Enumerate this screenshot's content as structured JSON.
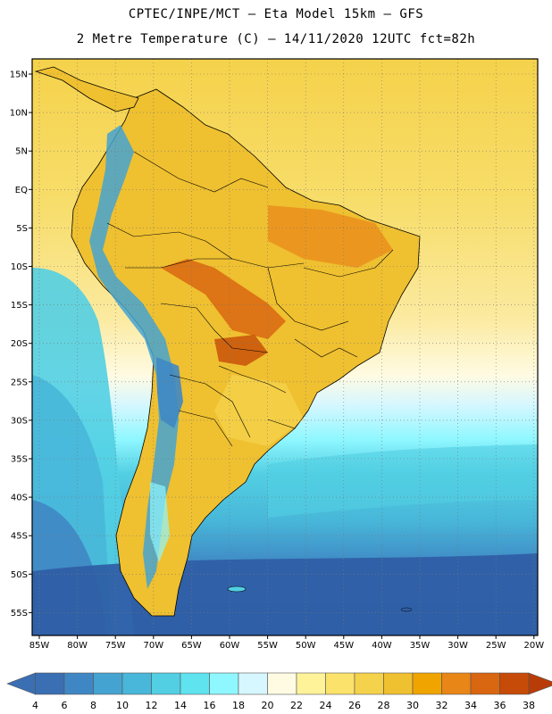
{
  "header": {
    "line1": "CPTEC/INPE/MCT –  Eta Model 15km – GFS",
    "line2": "2 Metre Temperature (C) – 14/11/2020 12UTC fct=82h"
  },
  "axes": {
    "lat_labels": [
      "15N",
      "10N",
      "5N",
      "EQ",
      "5S",
      "10S",
      "15S",
      "20S",
      "25S",
      "30S",
      "35S",
      "40S",
      "45S",
      "50S",
      "55S"
    ],
    "lon_labels": [
      "85W",
      "80W",
      "75W",
      "70W",
      "65W",
      "60W",
      "55W",
      "50W",
      "45W",
      "40W",
      "35W",
      "30W",
      "25W",
      "20W"
    ]
  },
  "colorbar": {
    "ticks": [
      "4",
      "6",
      "8",
      "10",
      "12",
      "14",
      "16",
      "18",
      "20",
      "22",
      "24",
      "26",
      "28",
      "30",
      "32",
      "34",
      "36",
      "38"
    ],
    "colors": [
      "#3a6fb3",
      "#3f87c4",
      "#45a3d1",
      "#48b7d9",
      "#52cfe3",
      "#5fe3ef",
      "#8ff7ff",
      "#d6f7ff",
      "#fffbe3",
      "#fff39a",
      "#fbe26a",
      "#f5d24b",
      "#efc030",
      "#f0a400",
      "#e98618",
      "#d96610",
      "#c64a08"
    ],
    "end_low": "#3a6fb3",
    "end_high": "#b83c08"
  },
  "map_colors": {
    "ocean_deep": "#2f5fa6",
    "ocean_mid": "#48b7d9",
    "ocean_light": "#52cfe3",
    "ocean_warm": "#f5d24b",
    "land_hot": "#e98618",
    "land_warm": "#efc030",
    "andes_cold": "#45a3d1"
  }
}
